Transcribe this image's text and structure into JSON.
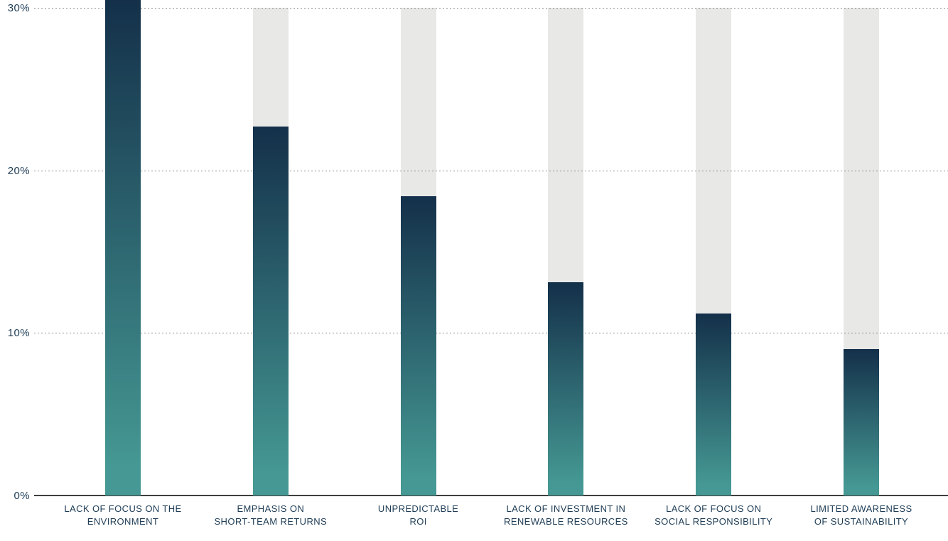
{
  "chart_data": {
    "type": "bar",
    "title": "",
    "unit": "%",
    "categories": [
      "LACK OF FOCUS ON THE ENVIRONMENT",
      "EMPHASIS ON SHORT-TEAM RETURNS",
      "UNPREDICTABLE ROI",
      "LACK OF INVESTMENT IN RENEWABLE RESOURCES",
      "LACK OF FOCUS ON SOCIAL RESPONSIBILITY",
      "LIMITED AWARENESS OF SUSTAINABILITY"
    ],
    "category_lines": [
      [
        "LACK OF FOCUS ON THE",
        "ENVIRONMENT"
      ],
      [
        "EMPHASIS ON",
        "SHORT-TEAM RETURNS"
      ],
      [
        "UNPREDICTABLE",
        "ROI"
      ],
      [
        "LACK OF INVESTMENT IN",
        "RENEWABLE RESOURCES"
      ],
      [
        "LACK OF FOCUS ON",
        "SOCIAL RESPONSIBILITY"
      ],
      [
        "LIMITED AWARENESS",
        "OF SUSTAINABILITY"
      ]
    ],
    "values": [
      30.5,
      22.7,
      18.4,
      13.1,
      11.2,
      9.0
    ],
    "ylim": [
      0,
      30
    ],
    "yticks": [
      {
        "value": 0,
        "label": "0%"
      },
      {
        "value": 10,
        "label": "10%"
      },
      {
        "value": 20,
        "label": "20%"
      },
      {
        "value": 30,
        "label": "30%"
      }
    ],
    "grid": "horizontal-dotted",
    "legend": "none",
    "colors": {
      "bar_gradient_top": "#14304a",
      "bar_gradient_bottom": "#459893",
      "track_bar": "#e8e8e7",
      "gridline": "#8c8c8c",
      "axis_line": "#3f3f3f",
      "label_text": "#1e3c55"
    }
  }
}
